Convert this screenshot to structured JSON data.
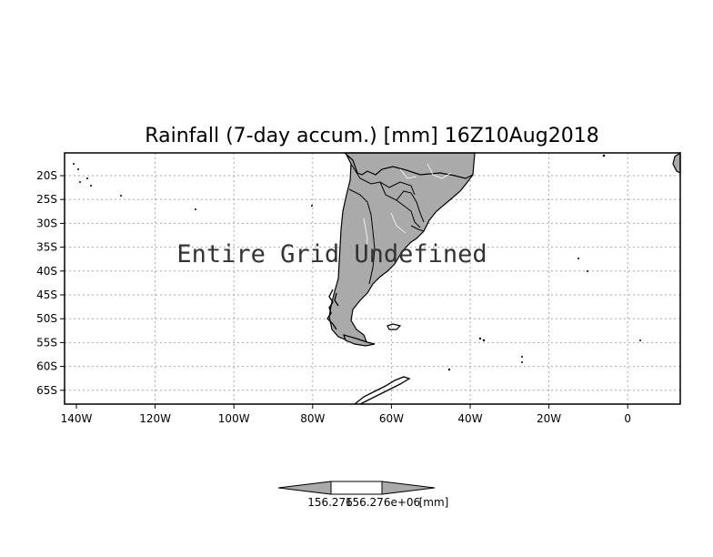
{
  "title": "Rainfall (7-day accum.) [mm] 16Z10Aug2018",
  "message": "Entire Grid Undefined",
  "lon_ticks": [
    "140W",
    "120W",
    "100W",
    "80W",
    "60W",
    "40W",
    "20W",
    "0"
  ],
  "lat_ticks": [
    "20S",
    "25S",
    "30S",
    "35S",
    "40S",
    "45S",
    "50S",
    "55S",
    "60S",
    "65S"
  ],
  "colorbar": {
    "label_left": "156.276",
    "label_right": "156.276e+06",
    "units": "[mm]"
  },
  "colors": {
    "land": "#aaaaaa",
    "grid": "#aaaaaa",
    "frame": "#000000",
    "colorbar_fill": "#aaaaaa"
  }
}
